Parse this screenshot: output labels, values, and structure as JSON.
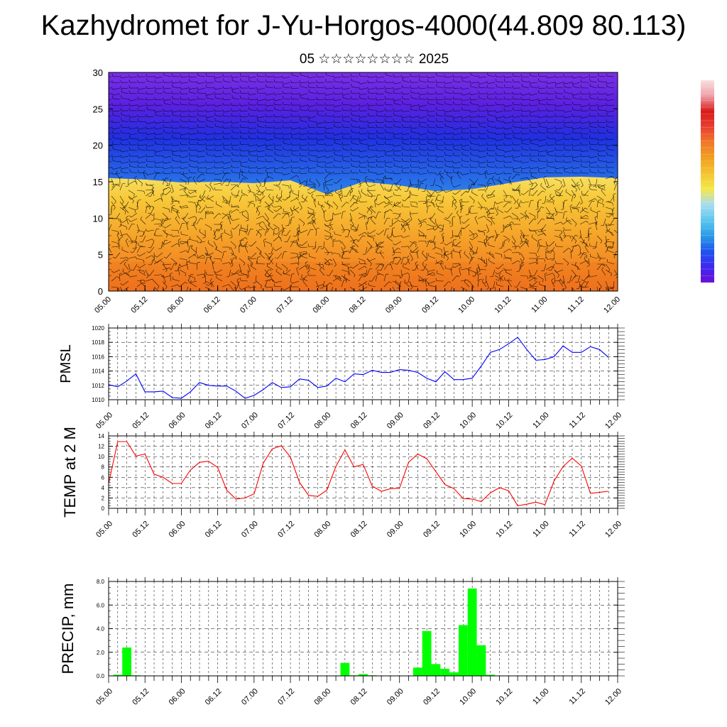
{
  "title": "Kazhydromet for J-Yu-Horgos-4000(44.809 80.113)",
  "subtitle": "05 ☆☆☆☆☆☆☆☆ 2025",
  "x_tick_labels": [
    "05.00",
    "05.12",
    "06.00",
    "06.12",
    "07.00",
    "07.12",
    "08.00",
    "08.12",
    "09.00",
    "09.12",
    "10.00",
    "10.12",
    "11.00",
    "11.12",
    "12.00"
  ],
  "colors": {
    "pmsl_line": "#0000ff",
    "temp_line": "#ff0000",
    "precip_bar": "#00ff00",
    "colorbar": [
      "#6a0fd8",
      "#3f28f0",
      "#1e54ee",
      "#2a9be6",
      "#5cc6ee",
      "#a8dcf0",
      "#f4e84a",
      "#f5c430",
      "#f0a020",
      "#f07828",
      "#e84030",
      "#d81a1a",
      "#f0a0a8",
      "#f8e0e0"
    ]
  },
  "chart_data": [
    {
      "id": "cross_section",
      "type": "heatmap",
      "title": "",
      "ylim": [
        0,
        30
      ],
      "y_ticks": [
        0,
        5,
        10,
        15,
        20,
        25,
        30
      ],
      "xlim": [
        0,
        168
      ],
      "description_layers": "temperature fill (orange low, violet high) with wind barbs",
      "boundary_levels_y": [
        15.5,
        15.3,
        14.9,
        15.0,
        14.8,
        15.2,
        13.3,
        15.0,
        14.5,
        13.7,
        14.0,
        14.8,
        15.6,
        15.7,
        15.5
      ]
    },
    {
      "id": "pmsl",
      "type": "line",
      "ylabel": "PMSL",
      "ylim": [
        1010,
        1020
      ],
      "y_ticks": [
        1010,
        1012,
        1014,
        1016,
        1018,
        1020
      ],
      "xlim": [
        0,
        168
      ],
      "series": [
        {
          "x": [
            0,
            3,
            6,
            9,
            12,
            15,
            18,
            21,
            24,
            27,
            30,
            33,
            36,
            39,
            42,
            45,
            48,
            51,
            54,
            57,
            60,
            63,
            66,
            69,
            72,
            75,
            78,
            81,
            84,
            87,
            90,
            93,
            96,
            99,
            102,
            105,
            108,
            111,
            114,
            117,
            120,
            123,
            126,
            129,
            132,
            135,
            138,
            141,
            144,
            147,
            150,
            153,
            156,
            159,
            162,
            165
          ],
          "values": [
            1012.1,
            1011.8,
            1012.6,
            1013.6,
            1011.1,
            1011.1,
            1011.2,
            1010.3,
            1010.2,
            1011.1,
            1012.4,
            1012.0,
            1011.9,
            1011.9,
            1011.2,
            1010.2,
            1010.6,
            1011.4,
            1012.4,
            1011.7,
            1011.8,
            1012.9,
            1012.7,
            1011.7,
            1011.9,
            1013.0,
            1012.5,
            1013.6,
            1013.5,
            1014.1,
            1013.8,
            1013.8,
            1014.2,
            1014.1,
            1013.8,
            1013.0,
            1012.5,
            1013.9,
            1012.8,
            1012.8,
            1013.0,
            1014.7,
            1016.6,
            1017.0,
            1017.8,
            1018.7,
            1017.0,
            1015.5,
            1015.6,
            1016.0,
            1017.5,
            1016.6,
            1016.6,
            1017.4,
            1017.0,
            1015.9
          ]
        }
      ]
    },
    {
      "id": "temp",
      "type": "line",
      "ylabel": "TEMP at 2 M",
      "ylim": [
        0,
        14
      ],
      "y_ticks": [
        0,
        2,
        4,
        6,
        8,
        10,
        12,
        14
      ],
      "xlim": [
        0,
        168
      ],
      "series": [
        {
          "x": [
            0,
            3,
            6,
            9,
            12,
            15,
            18,
            21,
            24,
            27,
            30,
            33,
            36,
            39,
            42,
            45,
            48,
            51,
            54,
            57,
            60,
            63,
            66,
            69,
            72,
            75,
            78,
            81,
            84,
            87,
            90,
            93,
            96,
            99,
            102,
            105,
            108,
            111,
            114,
            117,
            120,
            123,
            126,
            129,
            132,
            135,
            138,
            141,
            144,
            147,
            150,
            153,
            156,
            159,
            162,
            165
          ],
          "values": [
            4.8,
            12.9,
            12.9,
            10.1,
            10.5,
            6.6,
            6.0,
            4.8,
            4.8,
            7.4,
            8.9,
            9.1,
            7.9,
            3.5,
            1.8,
            2.0,
            2.8,
            8.7,
            11.5,
            12.1,
            9.9,
            5.0,
            2.5,
            2.3,
            3.5,
            8.1,
            11.3,
            8.0,
            8.5,
            4.3,
            3.3,
            3.8,
            3.9,
            8.9,
            10.5,
            9.6,
            7.1,
            4.6,
            3.8,
            1.9,
            1.8,
            1.3,
            3.0,
            4.0,
            3.4,
            0.5,
            0.8,
            1.2,
            0.7,
            5.3,
            8.1,
            9.7,
            8.2,
            2.9,
            3.1,
            3.3
          ]
        }
      ]
    },
    {
      "id": "precip",
      "type": "bar",
      "ylabel": "PRECIP, mm",
      "ylim": [
        0,
        8
      ],
      "y_ticks": [
        "0.0",
        "2.0",
        "4.0",
        "6.0",
        "8.0"
      ],
      "xlim": [
        0,
        168
      ],
      "bar_width_hours": 3,
      "x": [
        3,
        6,
        9,
        78,
        81,
        84,
        87,
        102,
        105,
        108,
        111,
        114,
        117,
        120,
        123,
        126,
        129
      ],
      "values": [
        0.1,
        2.4,
        0.05,
        1.1,
        0.05,
        0.15,
        0.05,
        0.7,
        3.8,
        1.0,
        0.6,
        0.3,
        4.3,
        7.4,
        2.6,
        0.1,
        0.0
      ]
    }
  ]
}
